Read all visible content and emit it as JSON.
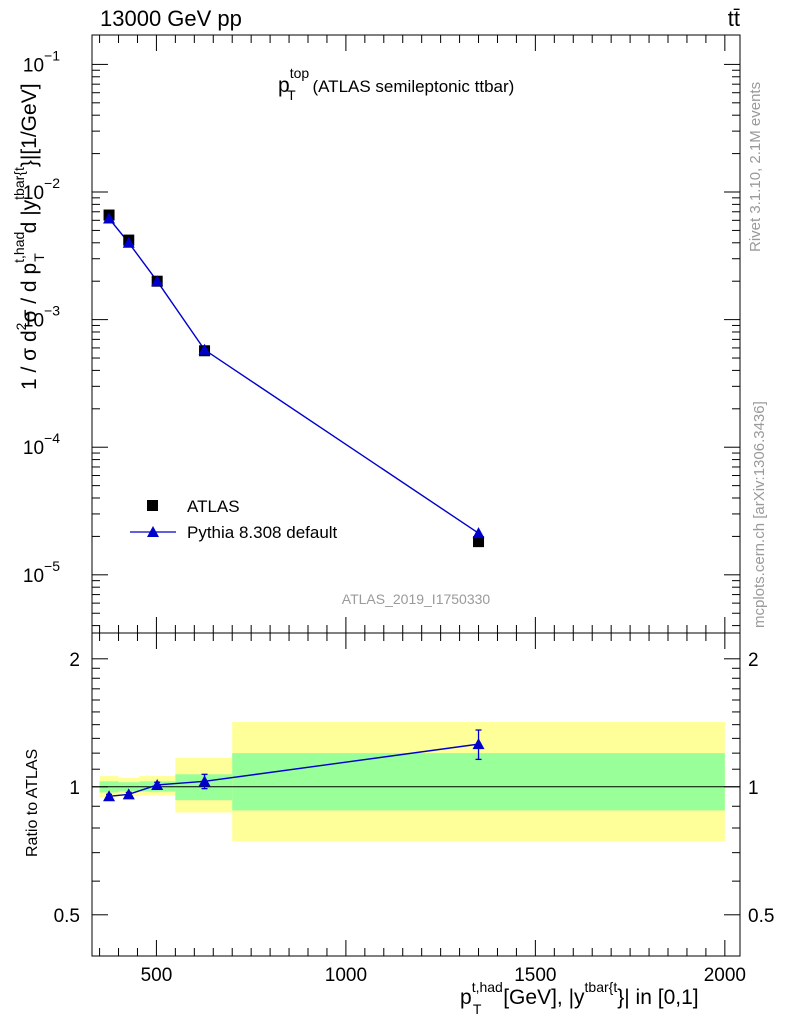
{
  "header": {
    "energy_label": "13000 GeV pp",
    "process_label": "tt̄"
  },
  "title": {
    "main": "p",
    "sup": "top",
    "sub": "T",
    "rest": " (ATLAS semileptonic ttbar)"
  },
  "axes": {
    "ylabel": {
      "prefix": "1 / σ d",
      "sup_2": "2",
      "sigma_d": "σ / d p",
      "sup_had": "t,had",
      "sub_t": "T",
      "d_y": " d |y",
      "sup_tbar": "tbar{t",
      "suffix": "}|[1/GeV]"
    },
    "ratio_ylabel": "Ratio to ATLAS",
    "xlabel": {
      "p": "p",
      "sup_had": "t,had",
      "sub_t": "T",
      "mid": " [GeV], |y",
      "sup_tbar": "tbar{t",
      "suffix": "}| in [0,1]"
    }
  },
  "analysis_label": "ATLAS_2019_I1750330",
  "side_labels": {
    "rivet": "Rivet 3.1.10,  2.1M events",
    "mcplots": "mcplots.cern.ch [arXiv:1306.3436]"
  },
  "legend": {
    "data_label": "ATLAS",
    "mc_label": "Pythia 8.308 default"
  },
  "ticks": {
    "main_y": [
      {
        "base": "10",
        "exp": "−1"
      },
      {
        "base": "10",
        "exp": "−2"
      },
      {
        "base": "10",
        "exp": "−3"
      },
      {
        "base": "10",
        "exp": "−4"
      },
      {
        "base": "10",
        "exp": "−5"
      }
    ],
    "ratio_y": [
      "2",
      "1",
      "0.5"
    ],
    "ratio_y_right": [
      "2",
      "1",
      "0.5"
    ],
    "x": [
      "500",
      "1000",
      "1500",
      "2000"
    ]
  },
  "colors": {
    "data": "#000000",
    "mc": "#0000cc",
    "band_inner": "#99ff99",
    "band_outer": "#ffff99"
  },
  "chart_data": {
    "type": "line",
    "x_scale": "linear",
    "y_scale": "log",
    "xlim": [
      330,
      2040
    ],
    "ylim": [
      3.5e-06,
      0.17
    ],
    "ratio_ylim": [
      0.4,
      2.3
    ],
    "ratio_y_scale": "log",
    "series": [
      {
        "name": "ATLAS",
        "marker": "square",
        "x": [
          375,
          427,
          502,
          627,
          1350
        ],
        "y": [
          0.0066,
          0.0042,
          0.002,
          0.00057,
          1.82e-05
        ]
      },
      {
        "name": "Pythia 8.308 default",
        "marker": "triangle",
        "x": [
          375,
          427,
          502,
          627,
          1350
        ],
        "y": [
          0.0062,
          0.004,
          0.002,
          0.00058,
          2.12e-05
        ]
      }
    ],
    "ratio": {
      "x": [
        375,
        427,
        502,
        627,
        1350
      ],
      "y": [
        0.95,
        0.96,
        1.01,
        1.03,
        1.26
      ],
      "yerr": [
        0.01,
        0.01,
        0.015,
        0.04,
        0.1
      ]
    },
    "bands": [
      {
        "x0": 350,
        "x1": 400,
        "inner": [
          0.97,
          1.03
        ],
        "outer": [
          0.945,
          1.06
        ]
      },
      {
        "x0": 400,
        "x1": 455,
        "inner": [
          0.975,
          1.025
        ],
        "outer": [
          0.95,
          1.05
        ]
      },
      {
        "x0": 455,
        "x1": 550,
        "inner": [
          0.975,
          1.03
        ],
        "outer": [
          0.955,
          1.06
        ]
      },
      {
        "x0": 550,
        "x1": 700,
        "inner": [
          0.93,
          1.07
        ],
        "outer": [
          0.87,
          1.17
        ]
      },
      {
        "x0": 700,
        "x1": 2000,
        "inner": [
          0.88,
          1.2
        ],
        "outer": [
          0.745,
          1.42
        ]
      }
    ]
  }
}
